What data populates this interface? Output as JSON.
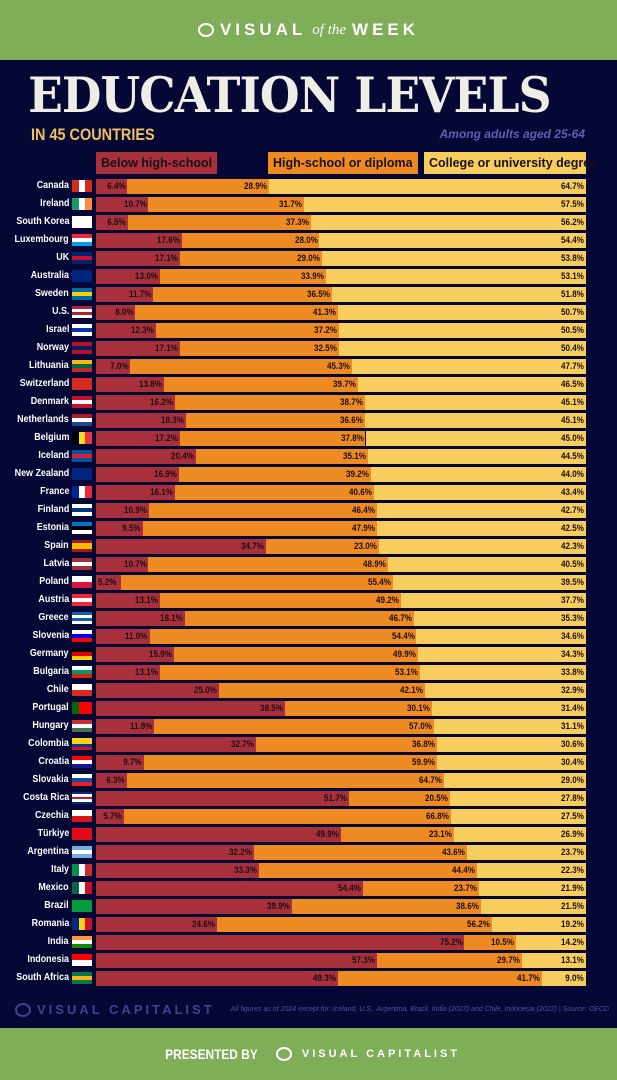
{
  "header": {
    "brand_left": "VISUAL",
    "brand_mid": "of the",
    "brand_right": "WEEK"
  },
  "title": "EDUCATION LEVELS",
  "subtitle": "IN 45 COUNTRIES",
  "note": "Among adults aged 25-64",
  "footer": {
    "brand": "VISUAL CAPITALIST",
    "source": "All figures as of 2024 except for: Iceland, U.S., Argentina, Brazil, India (2023) and Chile, Indonesia (2022) | Source: OECD",
    "presented_by": "PRESENTED BY",
    "presenter": "VISUAL CAPITALIST"
  },
  "chart_data": {
    "type": "bar",
    "stacked": true,
    "orientation": "horizontal",
    "unit": "%",
    "series": [
      {
        "name": "Below high-school",
        "color": "#a8303a",
        "values": [
          6.4,
          10.7,
          6.5,
          17.6,
          17.1,
          13.0,
          11.7,
          8.0,
          12.3,
          17.1,
          7.0,
          13.8,
          16.2,
          18.3,
          17.2,
          20.4,
          16.9,
          16.1,
          10.9,
          9.5,
          34.7,
          10.7,
          5.2,
          13.1,
          18.1,
          11.0,
          15.9,
          13.1,
          25.0,
          38.5,
          11.9,
          32.7,
          9.7,
          6.3,
          51.7,
          5.7,
          49.9,
          32.2,
          33.3,
          54.4,
          39.9,
          24.6,
          75.2,
          57.3,
          49.3
        ]
      },
      {
        "name": "High-school or diploma",
        "color": "#ee8a22",
        "values": [
          28.9,
          31.7,
          37.3,
          28.0,
          29.0,
          33.9,
          36.5,
          41.3,
          37.2,
          32.5,
          45.3,
          39.7,
          38.7,
          36.6,
          37.8,
          35.1,
          39.2,
          40.6,
          46.4,
          47.9,
          23.0,
          48.9,
          55.4,
          49.2,
          46.7,
          54.4,
          49.9,
          53.1,
          42.1,
          30.1,
          57.0,
          36.8,
          59.9,
          64.7,
          20.5,
          66.8,
          23.1,
          43.6,
          44.4,
          23.7,
          38.6,
          56.2,
          10.5,
          29.7,
          41.7
        ]
      },
      {
        "name": "College or university degree",
        "color": "#f7cd5e",
        "values": [
          64.7,
          57.5,
          56.2,
          54.4,
          53.8,
          53.1,
          51.8,
          50.7,
          50.5,
          50.4,
          47.7,
          46.5,
          45.1,
          45.1,
          45.0,
          44.5,
          44.0,
          43.4,
          42.7,
          42.5,
          42.3,
          40.5,
          39.5,
          37.7,
          35.3,
          34.6,
          34.3,
          33.8,
          32.9,
          31.4,
          31.1,
          30.6,
          30.4,
          29.0,
          27.8,
          27.5,
          26.9,
          23.7,
          22.3,
          21.9,
          21.5,
          19.2,
          14.2,
          13.1,
          9.0
        ]
      }
    ],
    "categories": [
      "Canada",
      "Ireland",
      "South Korea",
      "Luxembourg",
      "UK",
      "Australia",
      "Sweden",
      "U.S.",
      "Israel",
      "Norway",
      "Lithuania",
      "Switzerland",
      "Denmark",
      "Netherlands",
      "Belgium",
      "Iceland",
      "New Zealand",
      "France",
      "Finland",
      "Estonia",
      "Spain",
      "Latvia",
      "Poland",
      "Austria",
      "Greece",
      "Slovenia",
      "Germany",
      "Bulgaria",
      "Chile",
      "Portugal",
      "Hungary",
      "Colombia",
      "Croatia",
      "Slovakia",
      "Costa Rica",
      "Czechia",
      "Türkiye",
      "Argentina",
      "Italy",
      "Mexico",
      "Brazil",
      "Romania",
      "India",
      "Indonesia",
      "South Africa"
    ],
    "flags": [
      [
        "v",
        "#d52b1e",
        "#fff",
        "#d52b1e"
      ],
      [
        "v",
        "#169b62",
        "#fff",
        "#ff883e"
      ],
      [
        "h",
        "#fff"
      ],
      [
        "h",
        "#ed2939",
        "#fff",
        "#00a1de"
      ],
      [
        "h",
        "#012169",
        "#c8102e",
        "#012169"
      ],
      [
        "h",
        "#00247d"
      ],
      [
        "h",
        "#006aa7",
        "#fecc00",
        "#006aa7"
      ],
      [
        "h",
        "#b22234",
        "#fff",
        "#b22234",
        "#fff"
      ],
      [
        "h",
        "#fff",
        "#0038b8",
        "#fff"
      ],
      [
        "h",
        "#ba0c2f",
        "#00205b",
        "#ba0c2f"
      ],
      [
        "h",
        "#fdb913",
        "#006a44",
        "#c1272d"
      ],
      [
        "h",
        "#d52b1e"
      ],
      [
        "h",
        "#c8102e",
        "#fff",
        "#c8102e"
      ],
      [
        "h",
        "#ae1c28",
        "#fff",
        "#21468b"
      ],
      [
        "v",
        "#000",
        "#fdda24",
        "#ef3340"
      ],
      [
        "h",
        "#02529c",
        "#dc1e35",
        "#02529c"
      ],
      [
        "h",
        "#00247d"
      ],
      [
        "v",
        "#002395",
        "#fff",
        "#ed2939"
      ],
      [
        "h",
        "#fff",
        "#003580",
        "#fff"
      ],
      [
        "h",
        "#0072ce",
        "#000",
        "#fff"
      ],
      [
        "h",
        "#aa151b",
        "#f1bf00",
        "#f1bf00",
        "#aa151b"
      ],
      [
        "h",
        "#9e3039",
        "#fff",
        "#9e3039"
      ],
      [
        "h",
        "#fff",
        "#dc143c"
      ],
      [
        "h",
        "#ed2939",
        "#fff",
        "#ed2939"
      ],
      [
        "h",
        "#0d5eaf",
        "#fff",
        "#0d5eaf",
        "#fff"
      ],
      [
        "h",
        "#fff",
        "#0000ff",
        "#ff0000"
      ],
      [
        "h",
        "#000",
        "#dd0000",
        "#ffce00"
      ],
      [
        "h",
        "#fff",
        "#00966e",
        "#d62612"
      ],
      [
        "h",
        "#fff",
        "#d52b1e"
      ],
      [
        "v",
        "#006600",
        "#ff0000",
        "#ff0000"
      ],
      [
        "h",
        "#ce2939",
        "#fff",
        "#477050"
      ],
      [
        "h",
        "#fcd116",
        "#fcd116",
        "#003893",
        "#ce1126"
      ],
      [
        "h",
        "#ff0000",
        "#fff",
        "#171796"
      ],
      [
        "h",
        "#fff",
        "#0b4ea2",
        "#ee1c25"
      ],
      [
        "h",
        "#002b7f",
        "#fff",
        "#ce1126",
        "#fff",
        "#002b7f"
      ],
      [
        "h",
        "#fff",
        "#d7141a"
      ],
      [
        "h",
        "#e30a17"
      ],
      [
        "h",
        "#74acdf",
        "#fff",
        "#74acdf"
      ],
      [
        "v",
        "#009246",
        "#fff",
        "#ce2b37"
      ],
      [
        "v",
        "#006847",
        "#fff",
        "#ce1126"
      ],
      [
        "h",
        "#009c3b"
      ],
      [
        "v",
        "#002b7f",
        "#fcd116",
        "#ce1126"
      ],
      [
        "h",
        "#ff9933",
        "#fff",
        "#138808"
      ],
      [
        "h",
        "#ff0000",
        "#fff"
      ],
      [
        "h",
        "#007a4d",
        "#ffb612",
        "#007a4d"
      ]
    ]
  }
}
